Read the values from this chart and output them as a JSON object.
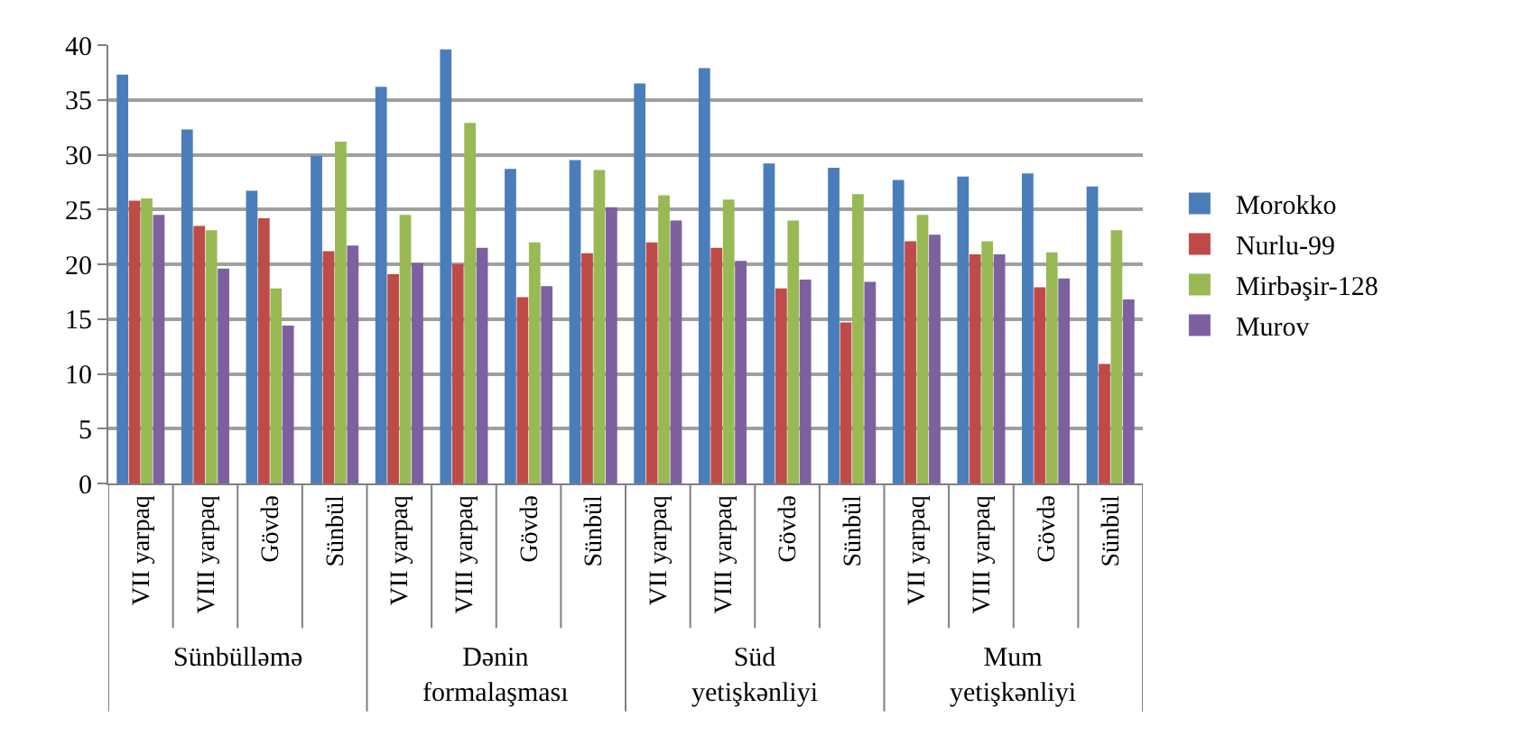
{
  "chart_data": {
    "type": "bar",
    "categories": [
      "VII yarpaq",
      "VIII yarpaq",
      "Gövdə",
      "Sünbül",
      "VII yarpaq",
      "VIII yarpaq",
      "Gövdə",
      "Sünbül",
      "VII yarpaq",
      "VIII yarpaq",
      "Gövdə",
      "Sünbül",
      "VII yarpaq",
      "VIII yarpaq",
      "Gövdə",
      "Sünbül"
    ],
    "series": [
      {
        "name": "Morokko",
        "color": "#4a7ebb",
        "values": [
          37.3,
          32.3,
          26.7,
          29.9,
          36.2,
          39.6,
          28.7,
          29.5,
          36.5,
          37.9,
          29.2,
          28.8,
          27.7,
          28.0,
          28.3,
          27.1
        ]
      },
      {
        "name": "Nurlu-99",
        "color": "#be4b48",
        "values": [
          25.8,
          23.5,
          24.2,
          21.2,
          19.1,
          20.0,
          17.0,
          21.0,
          22.0,
          21.5,
          17.8,
          14.7,
          22.1,
          20.9,
          17.9,
          10.9
        ]
      },
      {
        "name": "Mirbəşir-128",
        "color": "#98b954",
        "values": [
          26.0,
          23.1,
          17.8,
          31.2,
          24.5,
          32.9,
          22.0,
          28.6,
          26.3,
          25.9,
          24.0,
          26.4,
          24.5,
          22.1,
          21.1,
          23.1
        ]
      },
      {
        "name": "Murov",
        "color": "#7d60a0",
        "values": [
          24.5,
          19.6,
          14.4,
          21.7,
          20.1,
          21.5,
          18.0,
          25.2,
          24.0,
          20.3,
          18.6,
          18.4,
          22.7,
          20.9,
          18.7,
          16.8
        ]
      }
    ],
    "annotations": [
      "Sünbülləmə",
      "Dənin formalaşması",
      "Süd yetişkənliyi",
      "Mum yetişkənliyi"
    ],
    "ylim": [
      0,
      40
    ],
    "yticks": [
      0,
      5,
      10,
      15,
      20,
      25,
      30,
      35,
      40
    ],
    "grid": "y",
    "legend": "right"
  }
}
